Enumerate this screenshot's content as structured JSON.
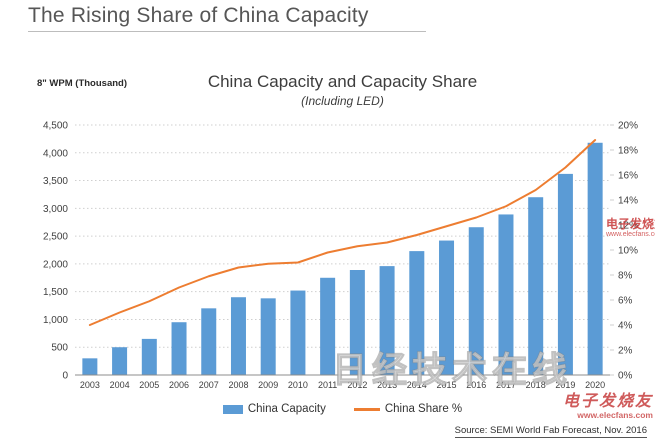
{
  "page": {
    "title": "The Rising Share of China Capacity"
  },
  "chart": {
    "title": "China Capacity and Capacity Share",
    "subtitle": "(Including LED)",
    "unit_label": "8\" WPM (Thousand)",
    "source": "Source: SEMI World Fab Forecast, Nov. 2016"
  },
  "legend": {
    "capacity_label": "China Capacity",
    "share_label": "China Share %"
  },
  "watermarks": {
    "center_text": "日经技术在线",
    "side_brand": "电子发烧友",
    "side_url": "www.elecfans.com",
    "corner_brand": "电子发烧友",
    "corner_url": "www.elecfans.com"
  },
  "colors": {
    "bar": "#5B9BD5",
    "line": "#ED7D31",
    "grid": "#cfcfcf",
    "axis": "#8c8c8c",
    "tick_text": "#3f3f3f"
  },
  "chart_data": {
    "type": "bar",
    "title": "China Capacity and Capacity Share",
    "subtitle": "(Including LED)",
    "xlabel": "",
    "ylabel": "8\" WPM (Thousand)",
    "categories": [
      "2003",
      "2004",
      "2005",
      "2006",
      "2007",
      "2008",
      "2009",
      "2010",
      "2011",
      "2012",
      "2013",
      "2014",
      "2015",
      "2016",
      "2017",
      "2018",
      "2019",
      "2020"
    ],
    "series": [
      {
        "name": "China Capacity",
        "type": "bar",
        "axis": "left",
        "values": [
          300,
          500,
          650,
          950,
          1200,
          1400,
          1380,
          1520,
          1750,
          1890,
          1960,
          2230,
          2420,
          2660,
          2890,
          3200,
          3620,
          4180
        ]
      },
      {
        "name": "China Share %",
        "type": "line",
        "axis": "right",
        "values": [
          4.0,
          5.0,
          5.9,
          7.0,
          7.9,
          8.6,
          8.9,
          9.0,
          9.8,
          10.3,
          10.6,
          11.2,
          11.9,
          12.6,
          13.5,
          14.8,
          16.6,
          18.8
        ]
      }
    ],
    "left_axis": {
      "min": 0,
      "max": 4500,
      "step": 500,
      "tick_labels": [
        "0",
        "500",
        "1,000",
        "1,500",
        "2,000",
        "2,500",
        "3,000",
        "3,500",
        "4,000",
        "4,500"
      ]
    },
    "right_axis": {
      "min": 0,
      "max": 20,
      "step": 2,
      "tick_labels": [
        "0%",
        "2%",
        "4%",
        "6%",
        "8%",
        "10%",
        "12%",
        "14%",
        "16%",
        "18%",
        "20%"
      ]
    },
    "grid": "horizontal-dotted",
    "legend_position": "bottom"
  }
}
